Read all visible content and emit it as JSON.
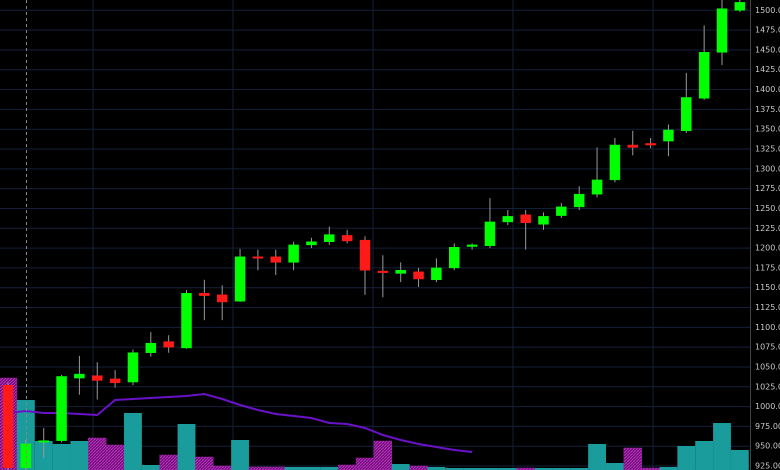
{
  "chart_data": {
    "type": "candlestick",
    "ylim": [
      920,
      1513
    ],
    "yticks": [
      {
        "value": 925,
        "label": "925.00"
      },
      {
        "value": 950,
        "label": "950.00"
      },
      {
        "value": 975,
        "label": "975.00"
      },
      {
        "value": 1000,
        "label": "1000.00"
      },
      {
        "value": 1025,
        "label": "1025.00"
      },
      {
        "value": 1050,
        "label": "1050.00"
      },
      {
        "value": 1075,
        "label": "1075.00"
      },
      {
        "value": 1100,
        "label": "1100.00"
      },
      {
        "value": 1125,
        "label": "1125.00"
      },
      {
        "value": 1150,
        "label": "1150.00"
      },
      {
        "value": 1175,
        "label": "1175.00"
      },
      {
        "value": 1200,
        "label": "1200.00"
      },
      {
        "value": 1225,
        "label": "1225.00"
      },
      {
        "value": 1250,
        "label": "1250.00"
      },
      {
        "value": 1275,
        "label": "1275.00"
      },
      {
        "value": 1300,
        "label": "1300.00"
      },
      {
        "value": 1325,
        "label": "1325.00"
      },
      {
        "value": 1350,
        "label": "1350.00"
      },
      {
        "value": 1375,
        "label": "1375.00"
      },
      {
        "value": 1400,
        "label": "1400.00"
      },
      {
        "value": 1425,
        "label": "1425.00"
      },
      {
        "value": 1450,
        "label": "1450.00"
      },
      {
        "value": 1475,
        "label": "1475.00"
      },
      {
        "value": 1500,
        "label": "1500.00"
      }
    ],
    "grid": true,
    "up_color": "#00ff00",
    "down_color": "#ff1a1a",
    "wick_color": "#9a9a9a",
    "open": [
      1027,
      923,
      955,
      957,
      1036,
      1039,
      1035,
      1031,
      1068,
      1082,
      1074,
      1143,
      1141,
      1133,
      1189,
      1189,
      1182,
      1204,
      1208,
      1216,
      1210,
      1171,
      1168,
      1170,
      1160,
      1175,
      1202,
      1203,
      1233,
      1242,
      1230,
      1241,
      1252,
      1268,
      1286,
      1330,
      1332,
      1335,
      1348,
      1389,
      1447,
      1500
    ],
    "high": [
      1030,
      958,
      973,
      1040,
      1064,
      1056,
      1046,
      1072,
      1094,
      1090,
      1147,
      1160,
      1153,
      1199,
      1198,
      1198,
      1208,
      1213,
      1227,
      1223,
      1215,
      1191,
      1182,
      1175,
      1187,
      1206,
      1206,
      1263,
      1248,
      1248,
      1245,
      1257,
      1278,
      1327,
      1339,
      1348,
      1339,
      1356,
      1421,
      1481,
      1513,
      1513
    ],
    "low": [
      920,
      920,
      935,
      955,
      1015,
      1009,
      1024,
      1027,
      1063,
      1068,
      1073,
      1109,
      1109,
      1132,
      1172,
      1166,
      1172,
      1200,
      1204,
      1206,
      1141,
      1138,
      1157,
      1151,
      1157,
      1172,
      1198,
      1200,
      1229,
      1198,
      1223,
      1238,
      1248,
      1264,
      1283,
      1317,
      1326,
      1316,
      1345,
      1387,
      1431,
      1498
    ],
    "close": [
      923,
      953,
      957,
      1038,
      1041,
      1033,
      1030,
      1068,
      1080,
      1075,
      1143,
      1140,
      1132,
      1189,
      1188,
      1182,
      1204,
      1208,
      1217,
      1209,
      1172,
      1169,
      1172,
      1161,
      1175,
      1201,
      1204,
      1233,
      1240,
      1232,
      1240,
      1252,
      1268,
      1286,
      1330,
      1327,
      1330,
      1349,
      1390,
      1447,
      1502,
      1510
    ],
    "volume_lim": [
      0,
      470
    ],
    "volume": [
      92,
      70,
      29,
      26,
      29,
      32,
      25,
      57,
      5,
      15,
      46,
      13,
      4,
      30,
      3,
      3,
      3,
      3,
      3,
      5,
      12,
      29,
      6,
      4,
      3,
      2,
      2,
      2,
      2,
      2,
      2,
      2,
      2,
      26,
      7,
      22,
      2,
      3,
      24,
      29,
      47,
      20
    ],
    "volume_up_color": "#1a9c9c",
    "volume_down_color": "#a020a8",
    "volume_average": [
      57,
      59,
      57,
      57,
      56,
      55,
      70,
      71,
      72,
      73,
      74,
      76,
      71,
      65,
      60,
      56,
      54,
      52,
      47,
      46,
      42,
      35,
      30,
      26,
      23,
      20,
      18,
      null,
      null,
      null,
      null,
      null,
      null,
      null,
      null,
      null,
      null,
      null,
      null,
      null,
      null,
      null
    ],
    "volume_average_color": "#6a12c8"
  }
}
